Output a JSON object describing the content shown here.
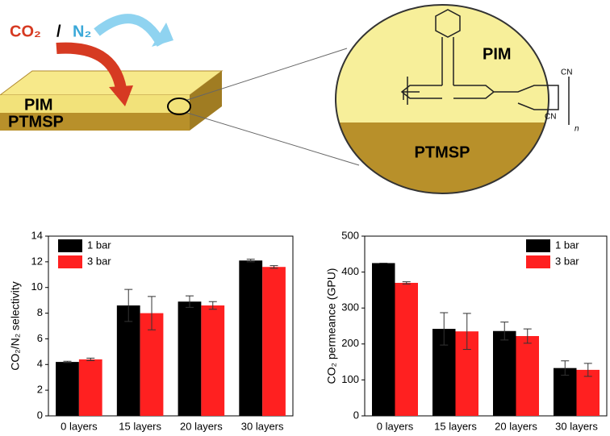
{
  "illustration": {
    "gas1": "CO₂",
    "separator": "/",
    "gas2": "N₂",
    "layer_top": "PIM",
    "layer_bottom": "PTMSP",
    "zoom_top": "PIM",
    "zoom_bottom": "PTMSP",
    "group1": "CN",
    "group2": "CN",
    "repeat": "n"
  },
  "chart_data": [
    {
      "type": "bar",
      "y_label": "CO₂/N₂ selectivity",
      "categories": [
        "0 layers",
        "15 layers",
        "20 layers",
        "30 layers"
      ],
      "series": [
        {
          "name": "1 bar",
          "color": "#000000",
          "values": [
            4.2,
            8.6,
            8.9,
            12.1
          ],
          "errors": [
            0.05,
            1.25,
            0.45,
            0.1
          ]
        },
        {
          "name": "3 bar",
          "color": "#ff2020",
          "values": [
            4.4,
            8.0,
            8.6,
            11.6
          ],
          "errors": [
            0.1,
            1.3,
            0.3,
            0.1
          ]
        }
      ],
      "ylim": [
        0,
        14
      ],
      "yticks": [
        0,
        2,
        4,
        6,
        8,
        10,
        12,
        14
      ],
      "legend": "upper left"
    },
    {
      "type": "bar",
      "y_label": "CO₂ permeance (GPU)",
      "categories": [
        "0 layers",
        "15 layers",
        "20 layers",
        "30 layers"
      ],
      "series": [
        {
          "name": "1 bar",
          "color": "#000000",
          "values": [
            425,
            242,
            236,
            133
          ],
          "errors": [
            0,
            45,
            25,
            20
          ]
        },
        {
          "name": "3 bar",
          "color": "#ff2020",
          "values": [
            370,
            235,
            222,
            128
          ],
          "errors": [
            3,
            50,
            20,
            18
          ]
        }
      ],
      "ylim": [
        0,
        500
      ],
      "yticks": [
        0,
        100,
        200,
        300,
        400,
        500
      ],
      "legend": "upper right"
    }
  ]
}
